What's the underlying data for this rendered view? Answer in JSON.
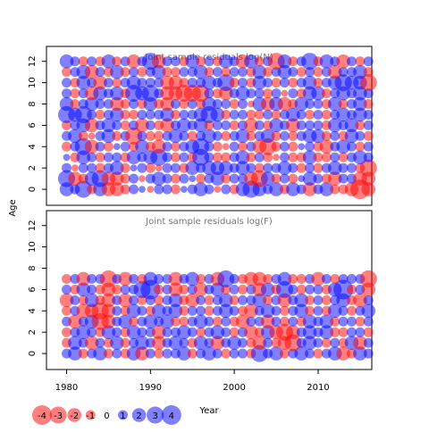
{
  "chart_data": [
    {
      "type": "bubble",
      "title": "Joint sample residuals log(N)",
      "ylabel": "Age",
      "x": [
        1980,
        1981,
        1982,
        1983,
        1984,
        1985,
        1986,
        1987,
        1988,
        1989,
        1990,
        1991,
        1992,
        1993,
        1994,
        1995,
        1996,
        1997,
        1998,
        1999,
        2000,
        2001,
        2002,
        2003,
        2004,
        2005,
        2006,
        2007,
        2008,
        2009,
        2010,
        2011,
        2012,
        2013,
        2014,
        2015,
        2016
      ],
      "y": [
        0,
        1,
        2,
        3,
        4,
        5,
        6,
        7,
        8,
        9,
        10,
        11,
        12
      ],
      "values": [
        [
          2,
          1,
          3,
          -1,
          2,
          -2,
          -2,
          -1,
          1,
          0.5,
          -0.5,
          1,
          1,
          -1,
          0.5,
          1,
          2,
          1,
          -0.5,
          1,
          -1,
          2,
          3,
          2,
          1,
          2,
          -1,
          2,
          1,
          -2,
          1,
          2,
          -1,
          -1,
          -2,
          -4,
          -2
        ],
        [
          3,
          -2,
          -1,
          2,
          3,
          -2,
          -2,
          -1,
          1,
          -0.5,
          1,
          2,
          1,
          -1,
          1,
          0.5,
          -1,
          1,
          2,
          -1,
          1,
          1,
          -2,
          -3,
          2,
          -1,
          1,
          -1,
          0.5,
          2,
          1,
          -1,
          -2,
          1,
          1,
          -2,
          -2
        ],
        [
          1,
          -0.5,
          1,
          1,
          -1,
          1,
          2,
          -1,
          0.5,
          1,
          -1,
          -0.5,
          1,
          1,
          -1,
          2,
          1,
          2,
          2,
          2,
          1,
          2,
          1,
          -1,
          1,
          1,
          2,
          1,
          -1,
          1,
          -1,
          1,
          2,
          1,
          1,
          -1,
          -3
        ],
        [
          0.5,
          -1,
          2,
          1,
          -1,
          1,
          1,
          -1,
          2,
          1,
          2,
          3,
          1,
          -1,
          1,
          -1,
          3,
          1,
          -1,
          -1,
          1,
          2,
          -1,
          1,
          -1,
          -0.5,
          1,
          -1,
          -1,
          2,
          -1,
          -1,
          1,
          -1,
          1,
          2,
          1
        ],
        [
          -1,
          1,
          3,
          -2,
          1,
          -1,
          0.5,
          1,
          -1,
          2,
          -1,
          -2,
          1,
          -1,
          1,
          2,
          3,
          1,
          -1,
          -0.5,
          1,
          -1,
          1,
          -2,
          -3,
          -1,
          1,
          -1,
          0.5,
          1,
          -1,
          -2,
          1,
          2,
          1,
          -1,
          1
        ],
        [
          1,
          2,
          -1,
          -0.5,
          1,
          2,
          -1,
          1,
          -3,
          1,
          -1,
          -1,
          1,
          2,
          1,
          -1,
          1,
          2,
          1,
          -1,
          1,
          2,
          -1,
          1,
          2,
          -1,
          1,
          -1,
          1,
          2,
          2,
          -1,
          1,
          -1,
          2,
          1,
          -1
        ],
        [
          -1,
          1,
          2,
          -2,
          1,
          2,
          1,
          -1,
          1,
          -2,
          1,
          -1,
          -2,
          1,
          2,
          1,
          2,
          -1,
          1,
          1,
          -1,
          1,
          -2,
          1,
          -1,
          2,
          1,
          -2,
          1,
          1,
          1,
          -1,
          2,
          1,
          2,
          -1,
          1
        ],
        [
          3,
          2,
          3,
          1,
          -1,
          1,
          2,
          -1,
          -1,
          1,
          1,
          1,
          2,
          -1,
          1,
          1,
          2,
          3,
          2,
          -1,
          1,
          1,
          -1,
          -1,
          1,
          -1,
          1,
          2,
          1,
          -1,
          1,
          -1,
          1,
          2,
          1,
          2,
          1
        ],
        [
          2,
          -1,
          1,
          2,
          1,
          1,
          -2,
          -1,
          1,
          -1,
          2,
          -1,
          -2,
          1,
          -1,
          1,
          -1,
          2,
          1,
          1,
          -1,
          1,
          -0.5,
          2,
          -2,
          2,
          -2,
          -1,
          2,
          1,
          1,
          -1,
          2,
          -1,
          1,
          2,
          -1
        ],
        [
          1,
          -1,
          1,
          -2,
          2,
          1,
          2,
          -1,
          3,
          2,
          3,
          1,
          -2,
          -2,
          -3,
          -3,
          -3,
          1,
          -1,
          -2,
          1,
          2,
          1,
          1,
          -1,
          1,
          -0.5,
          1,
          -1,
          2,
          2,
          -1,
          1,
          2,
          1,
          2,
          1
        ],
        [
          1,
          -1,
          2,
          1,
          -2,
          1,
          -1,
          1,
          2,
          1,
          1,
          1,
          -2,
          -2,
          -1,
          1,
          1,
          2,
          1,
          3,
          -1,
          1,
          -1,
          2,
          1,
          -1,
          1,
          -1,
          1,
          2,
          -1,
          1,
          2,
          3,
          2,
          2,
          -3
        ],
        [
          -1,
          1,
          2,
          -2,
          1,
          -1,
          2,
          -1,
          1,
          -1,
          1,
          2,
          -1,
          -1,
          1,
          1,
          2,
          -1,
          1,
          -1,
          1,
          1,
          -1,
          2,
          -1,
          1,
          2,
          1,
          -1,
          1,
          -1,
          1,
          -2,
          1,
          1,
          2,
          -1
        ],
        [
          2,
          1,
          -1,
          1,
          -1,
          2,
          -1,
          1,
          -2,
          1,
          3,
          -2,
          1,
          1,
          -1,
          2,
          -1,
          1,
          -1,
          2,
          1,
          -2,
          2,
          -1,
          1,
          -3,
          2,
          -1,
          1,
          3,
          -1,
          2,
          1,
          -2,
          1,
          -1,
          1
        ]
      ],
      "xlim": [
        1977.6,
        2016.4
      ],
      "ylim": [
        -1.5,
        13.4
      ],
      "yticks": [
        0,
        2,
        4,
        6,
        8,
        10,
        12
      ],
      "colors": {
        "negative": "#ff0000",
        "positive": "#0000ff"
      }
    },
    {
      "type": "bubble",
      "title": "Joint sample residuals log(F)",
      "xlabel": "Year",
      "x": [
        1980,
        1981,
        1982,
        1983,
        1984,
        1985,
        1986,
        1987,
        1988,
        1989,
        1990,
        1991,
        1992,
        1993,
        1994,
        1995,
        1996,
        1997,
        1998,
        1999,
        2000,
        2001,
        2002,
        2003,
        2004,
        2005,
        2006,
        2007,
        2008,
        2009,
        2010,
        2011,
        2012,
        2013,
        2014,
        2015,
        2016
      ],
      "y": [
        0,
        1,
        2,
        3,
        4,
        5,
        6,
        7
      ],
      "values": [
        [
          1,
          2,
          -1,
          1,
          2,
          -1,
          1,
          -1,
          2,
          -2,
          1,
          -1,
          1,
          1,
          2,
          -1,
          1,
          2,
          1,
          -1,
          1,
          1,
          -1,
          3,
          1,
          2,
          -1,
          1,
          2,
          1,
          -1,
          1,
          2,
          -2,
          -1,
          2,
          1
        ],
        [
          -1,
          2,
          1,
          -2,
          1,
          -1,
          2,
          -1,
          1,
          2,
          1,
          -2,
          1,
          2,
          1,
          -1,
          2,
          1,
          -2,
          1,
          2,
          1,
          -1,
          -2,
          1,
          -1,
          -2,
          -3,
          1,
          2,
          1,
          -1,
          1,
          -1,
          2,
          -2,
          1
        ],
        [
          -1,
          1,
          2,
          1,
          -1,
          2,
          1,
          -1,
          2,
          1,
          1,
          -2,
          1,
          1,
          2,
          1,
          -1,
          1,
          2,
          1,
          -1,
          1,
          -2,
          -1,
          2,
          -2,
          -3,
          -2,
          1,
          2,
          1,
          2,
          -1,
          -1,
          1,
          1,
          -1
        ],
        [
          1,
          -2,
          1,
          2,
          -3,
          -2,
          1,
          2,
          -1,
          1,
          2,
          1,
          2,
          -1,
          -1,
          1,
          2,
          1,
          -1,
          1,
          -1,
          -2,
          1,
          1,
          -2,
          1,
          -1,
          1,
          -1,
          2,
          1,
          2,
          -1,
          1,
          1,
          -1,
          1
        ],
        [
          -1,
          1,
          -2,
          -2,
          -3,
          -2,
          1,
          -1,
          2,
          1,
          -1,
          2,
          1,
          2,
          -1,
          1,
          1,
          -1,
          1,
          2,
          1,
          -1,
          -2,
          1,
          2,
          1,
          -1,
          1,
          2,
          -1,
          1,
          -1,
          2,
          1,
          -1,
          1,
          2
        ],
        [
          -2,
          1,
          -1,
          2,
          -1,
          -2,
          1,
          -2,
          1,
          -1,
          1,
          -1,
          1,
          2,
          -1,
          -2,
          1,
          -1,
          1,
          2,
          -1,
          1,
          1,
          2,
          -1,
          1,
          -2,
          1,
          2,
          -1,
          1,
          -1,
          1,
          2,
          -1,
          -2,
          1
        ],
        [
          1,
          -1,
          2,
          1,
          -1,
          -2,
          -1,
          1,
          1,
          3,
          4,
          -1,
          1,
          -2,
          -1,
          1,
          -2,
          1,
          2,
          -1,
          1,
          -1,
          1,
          -2,
          2,
          -1,
          3,
          1,
          -1,
          1,
          1,
          -1,
          2,
          4,
          -1,
          1,
          -2
        ],
        [
          -1,
          1,
          -2,
          1,
          1,
          -3,
          1,
          -2,
          1,
          -1,
          2,
          1,
          1,
          -2,
          1,
          2,
          -1,
          1,
          -2,
          3,
          1,
          -1,
          -2,
          -2,
          -1,
          1,
          2,
          -1,
          -1,
          1,
          -2,
          1,
          -1,
          1,
          1,
          1,
          -3
        ]
      ],
      "xlim": [
        1977.6,
        2016.4
      ],
      "ylim": [
        -1.5,
        13.4
      ],
      "yticks": [
        0,
        2,
        4,
        6,
        8,
        10,
        12
      ],
      "xticks": [
        1980,
        1990,
        2000,
        2010
      ],
      "size_legend": [
        -4,
        -3,
        -2,
        -1,
        0,
        1,
        2,
        3,
        4
      ],
      "colors": {
        "negative": "#ff0000",
        "positive": "#0000ff"
      }
    }
  ]
}
